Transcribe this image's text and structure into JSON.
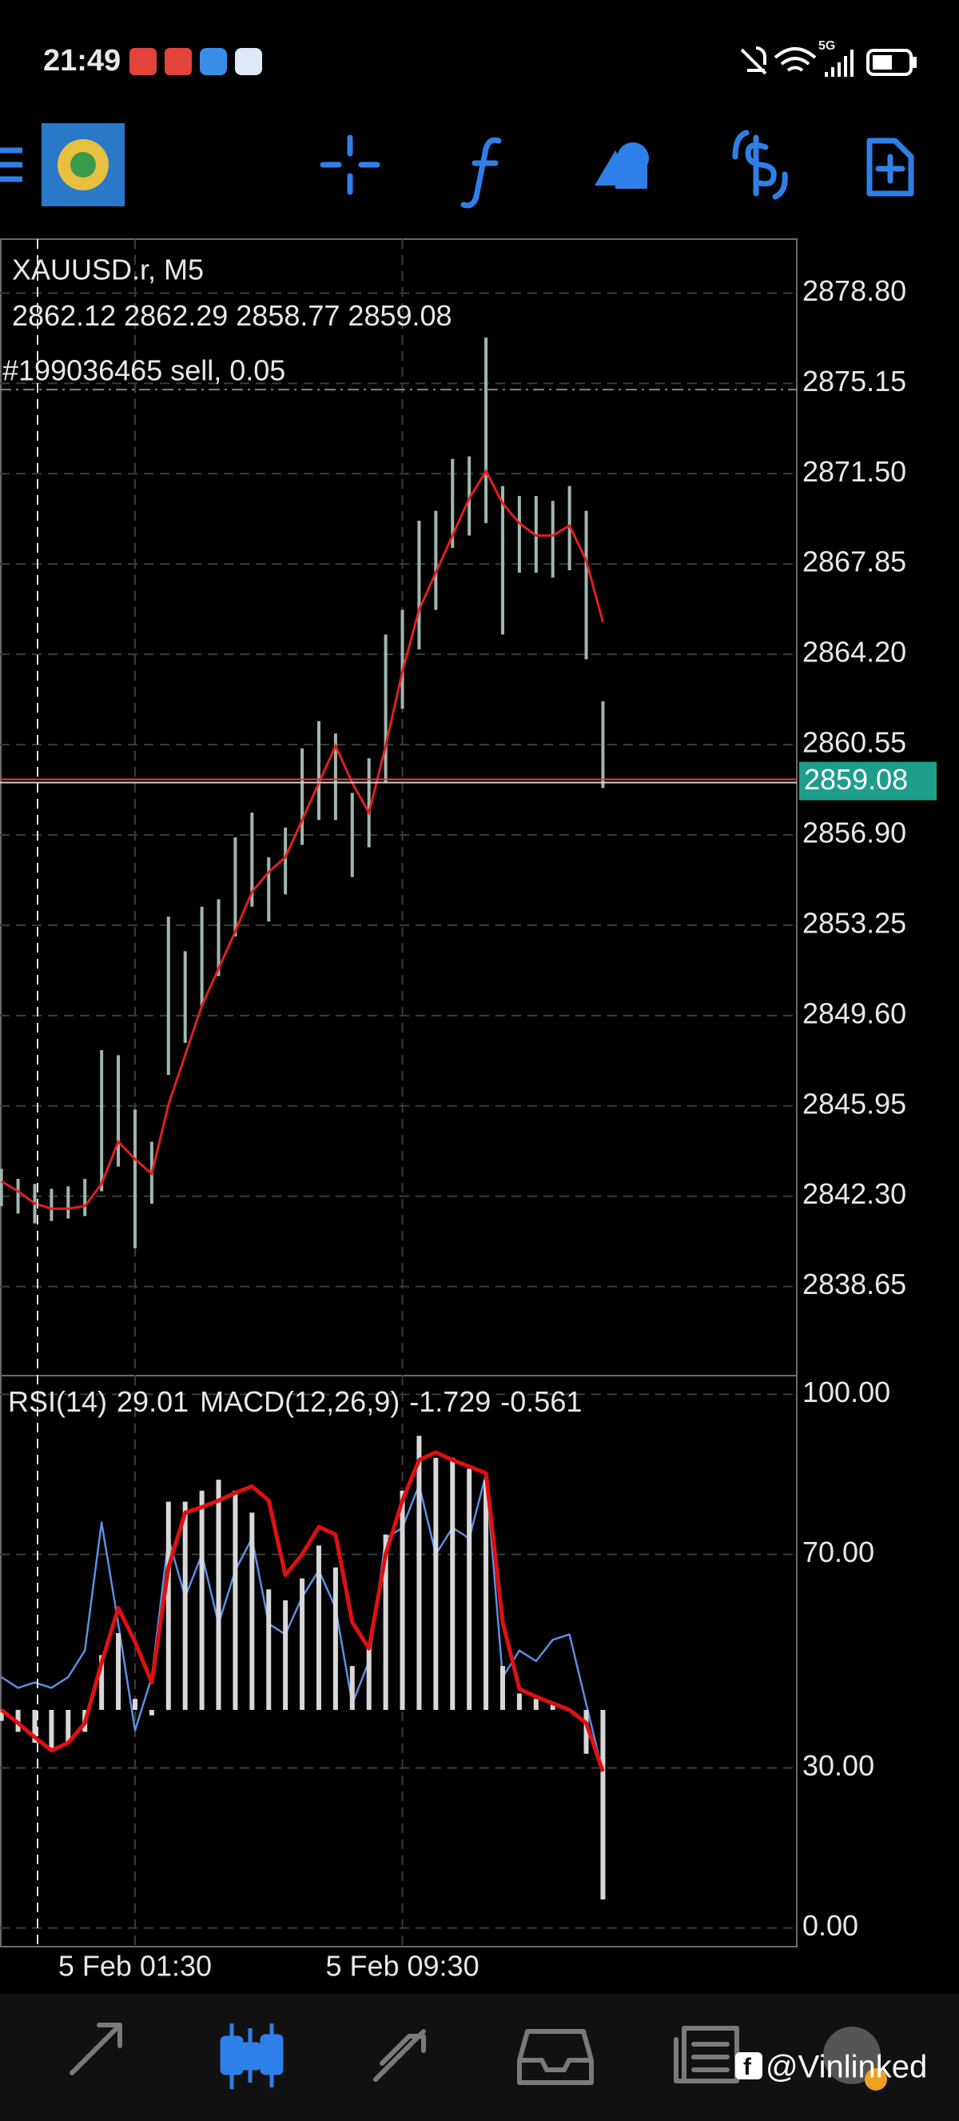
{
  "status_bar": {
    "time": "21:49",
    "network": "5G"
  },
  "watermark": "@Vinlinked",
  "chart_data": [
    {
      "type": "ohlc",
      "title": "XAUUSD.r, M5",
      "ohlc": [
        2862.12,
        2862.29,
        2858.77,
        2859.08
      ],
      "order": {
        "label": "#199036465 sell, 0.05",
        "price": 2874.9,
        "color": "#6f8f6f"
      },
      "x": [
        -4,
        -3.5,
        -3,
        -2.5,
        -2,
        -1.5,
        -1,
        -0.5,
        0,
        0.5,
        1,
        1.5,
        2,
        2.5,
        3,
        3.5,
        4,
        4.5,
        5,
        5.5,
        6,
        6.5,
        7,
        7.5,
        8,
        8.5,
        9,
        9.5,
        10,
        10.5,
        11,
        11.5,
        12,
        12.5,
        13,
        13.5,
        14
      ],
      "high": [
        2843.4,
        2843.0,
        2842.8,
        2842.6,
        2842.7,
        2843.0,
        2848.2,
        2848.0,
        2845.8,
        2844.5,
        2853.6,
        2852.2,
        2854.0,
        2854.3,
        2856.8,
        2857.8,
        2856.0,
        2857.2,
        2860.4,
        2861.5,
        2861.0,
        2858.6,
        2860.0,
        2865.0,
        2866.0,
        2869.6,
        2870.0,
        2872.1,
        2872.2,
        2877.0,
        2871.0,
        2870.6,
        2870.6,
        2870.4,
        2871.0,
        2870.0,
        2862.3
      ],
      "low": [
        2841.9,
        2841.6,
        2841.2,
        2841.3,
        2841.4,
        2841.5,
        2842.5,
        2843.5,
        2840.2,
        2842.0,
        2847.2,
        2848.5,
        2850.0,
        2851.2,
        2852.8,
        2854.0,
        2853.4,
        2854.5,
        2856.5,
        2857.5,
        2857.5,
        2855.2,
        2856.4,
        2859.0,
        2862.0,
        2864.4,
        2866.0,
        2868.5,
        2869.0,
        2869.5,
        2865.0,
        2867.5,
        2867.5,
        2867.3,
        2867.6,
        2864.0,
        2858.8
      ],
      "ma": [
        2842.9,
        2842.5,
        2842.0,
        2841.8,
        2841.8,
        2841.9,
        2842.8,
        2844.5,
        2843.8,
        2843.2,
        2846.0,
        2848.0,
        2850.0,
        2851.5,
        2853.0,
        2854.6,
        2855.4,
        2856.0,
        2857.5,
        2859.0,
        2860.5,
        2859.0,
        2857.8,
        2860.5,
        2863.5,
        2866.0,
        2867.5,
        2869.0,
        2870.5,
        2871.6,
        2870.3,
        2869.5,
        2869.0,
        2869.0,
        2869.4,
        2868.0,
        2865.5
      ],
      "bar_color": "#9fb8b0",
      "ma_color": "#e02020",
      "price_color": "#1e9e8a",
      "xlim": [
        -4.04,
        19.8
      ],
      "xticks": [
        0,
        8
      ],
      "ylim": [
        2835.05,
        2880.98
      ],
      "yticks": [
        {
          "value": 2878.8,
          "label": "2878.80"
        },
        2875.15,
        {
          "value": 2871.5,
          "label": "2871.50"
        },
        2867.85,
        {
          "value": 2864.2,
          "label": "2864.20"
        },
        2860.55,
        {
          "value": 2856.9,
          "label": "2856.90"
        },
        2853.25,
        {
          "value": 2849.6,
          "label": "2849.60"
        },
        2845.95,
        {
          "value": 2842.3,
          "label": "2842.30"
        },
        2838.65
      ],
      "grid": true
    },
    {
      "type": "indicator",
      "x": [
        -4,
        -3.5,
        -3,
        -2.5,
        -2,
        -1.5,
        -1,
        -0.5,
        0,
        0.5,
        1,
        1.5,
        2,
        2.5,
        3,
        3.5,
        4,
        4.5,
        5,
        5.5,
        6,
        6.5,
        7,
        7.5,
        8,
        8.5,
        9,
        9.5,
        10,
        10.5,
        11,
        11.5,
        12,
        12.5,
        13,
        13.5,
        14
      ],
      "series": [
        {
          "name": "RSI(14)",
          "color": "#5b8fe0",
          "values": [
            47,
            45,
            46,
            45,
            47,
            52,
            76,
            57,
            37,
            47,
            73,
            62,
            70,
            57,
            67,
            73,
            57,
            55,
            62,
            67,
            60,
            42,
            50,
            73,
            75,
            83,
            70,
            75,
            73,
            85,
            47,
            52,
            50,
            54,
            55,
            42,
            29.01
          ]
        },
        {
          "name": "MACD(12,26,9)",
          "color": "#d8d8d8",
          "axis": "y2",
          "values": [
            -0.1,
            -0.2,
            -0.3,
            -0.35,
            -0.3,
            -0.2,
            0.5,
            0.7,
            0.1,
            -0.05,
            1.9,
            1.9,
            2.0,
            2.1,
            2.0,
            1.8,
            1.1,
            1.0,
            1.2,
            1.5,
            1.3,
            0.4,
            0.6,
            1.6,
            2.0,
            2.5,
            2.3,
            2.3,
            2.2,
            2.1,
            0.4,
            0.15,
            0.1,
            0.05,
            0.0,
            -0.4,
            -1.729
          ]
        },
        {
          "color": "#e01010",
          "axis": "y2",
          "values": [
            0,
            -0.12,
            -0.25,
            -0.37,
            -0.3,
            -0.12,
            0.43,
            0.93,
            0.62,
            0.25,
            1.3,
            1.8,
            1.85,
            1.91,
            1.98,
            2.04,
            1.91,
            1.23,
            1.42,
            1.67,
            1.6,
            0.8,
            0.56,
            1.42,
            1.91,
            2.28,
            2.35,
            2.28,
            2.22,
            2.16,
            0.8,
            0.19,
            0.12,
            0.06,
            0,
            -0.12,
            -0.561
          ]
        }
      ],
      "xlim": [
        -4.04,
        19.8
      ],
      "xticks": [
        {
          "value": 0,
          "label": "5 Feb 01:30"
        },
        {
          "value": 8,
          "label": "5 Feb 09:30"
        }
      ],
      "ylim": [
        -3.5,
        103.5
      ],
      "yticks": [
        {
          "value": 100,
          "label": "100.00"
        },
        {
          "value": 70,
          "label": "70.00"
        },
        {
          "value": 30,
          "label": "30.00"
        },
        {
          "value": 0,
          "label": "0.00"
        }
      ],
      "y2lim": [
        -2.16,
        3.05
      ],
      "grid": true
    }
  ]
}
